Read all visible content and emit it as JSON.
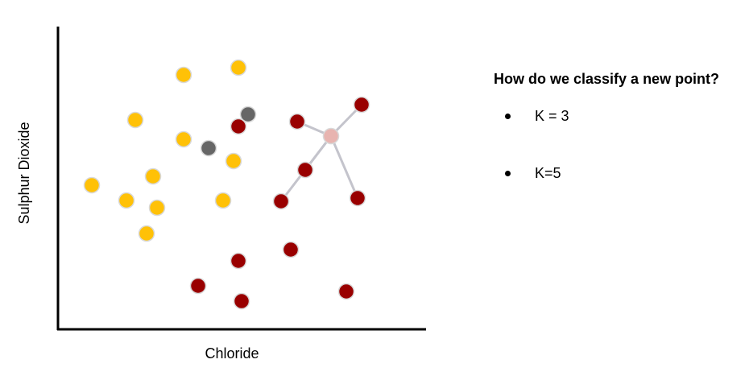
{
  "axes": {
    "x_label": "Chloride",
    "y_label": "Sulphur Dioxide"
  },
  "panel": {
    "title": "How do we classify a new point?",
    "items": [
      "K = 3",
      "K=5"
    ]
  },
  "colors": {
    "class_a": "#FFC107",
    "class_b": "#990000",
    "unknown": "#666666",
    "new_point": "#E8B4B0",
    "neighbor_line": "#C4C4CC",
    "axis": "#000000"
  }
}
